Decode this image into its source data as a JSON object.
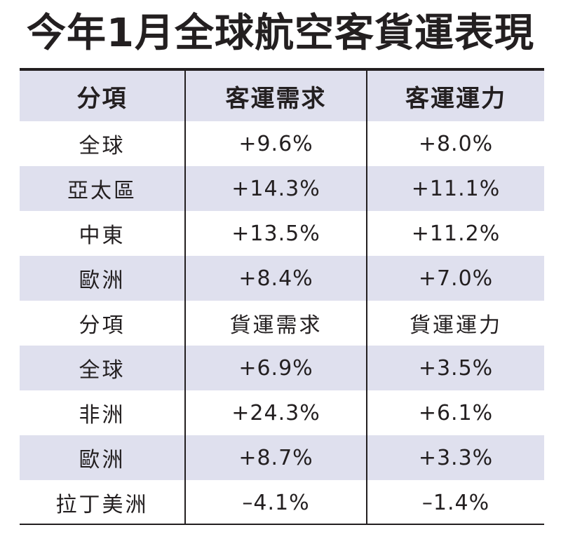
{
  "title": "今年1月全球航空客貨運表現",
  "colors": {
    "shading": "#dfe0ee",
    "text": "#231f20",
    "background": "#ffffff"
  },
  "chart_data": {
    "type": "table",
    "title": "今年1月全球航空客貨運表現",
    "header": [
      "分項",
      "客運需求",
      "客運運力"
    ],
    "rows": [
      [
        "全球",
        "+9.6%",
        "+8.0%"
      ],
      [
        "亞太區",
        "+14.3%",
        "+11.1%"
      ],
      [
        "中東",
        "+13.5%",
        "+11.2%"
      ],
      [
        "歐洲",
        "+8.4%",
        "+7.0%"
      ],
      [
        "分項",
        "貨運需求",
        "貨運運力"
      ],
      [
        "全球",
        "+6.9%",
        "+3.5%"
      ],
      [
        "非洲",
        "+24.3%",
        "+6.1%"
      ],
      [
        "歐洲",
        "+8.7%",
        "+3.3%"
      ],
      [
        "拉丁美洲",
        "–4.1%",
        "–1.4%"
      ]
    ]
  }
}
